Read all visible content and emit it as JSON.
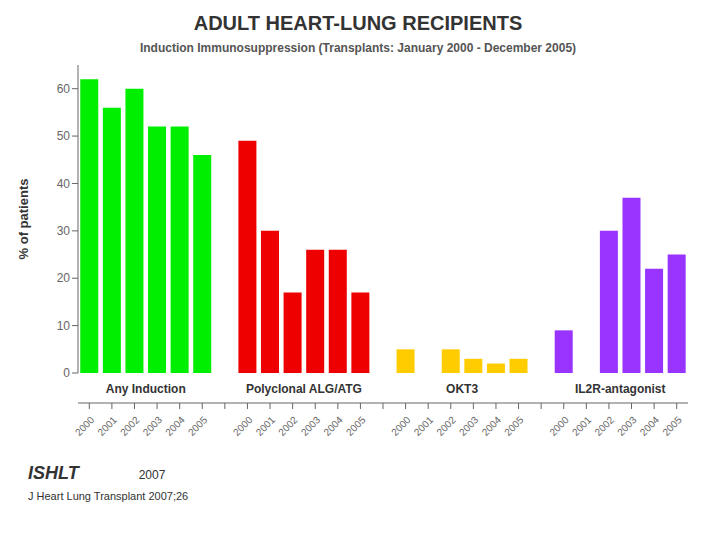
{
  "chart_data": {
    "type": "bar",
    "title": "ADULT HEART-LUNG RECIPIENTS",
    "subtitle": "Induction Immunosuppression (Transplants: January 2000  - December 2005)",
    "ylabel": "% of patients",
    "categories": [
      "2000",
      "2001",
      "2002",
      "2003",
      "2004",
      "2005"
    ],
    "series": [
      {
        "name": "Any Induction",
        "color": "#00EE00",
        "values": [
          62,
          56,
          60,
          52,
          52,
          46
        ]
      },
      {
        "name": "Polyclonal ALG/ATG",
        "color": "#EE0000",
        "values": [
          49,
          30,
          17,
          26,
          26,
          17
        ]
      },
      {
        "name": "OKT3",
        "color": "#FFCC00",
        "values": [
          5,
          0,
          5,
          3,
          2,
          3
        ]
      },
      {
        "name": "IL2R-antagonist",
        "color": "#9933FF",
        "values": [
          9,
          0,
          30,
          37,
          22,
          25
        ]
      }
    ],
    "ylim": [
      0,
      65
    ],
    "yticks": [
      0,
      10,
      20,
      30,
      40,
      50,
      60
    ],
    "grid": false,
    "annotations": [
      "ISHLT",
      "2007",
      "J Heart Lung Transplant 2007;26"
    ]
  }
}
